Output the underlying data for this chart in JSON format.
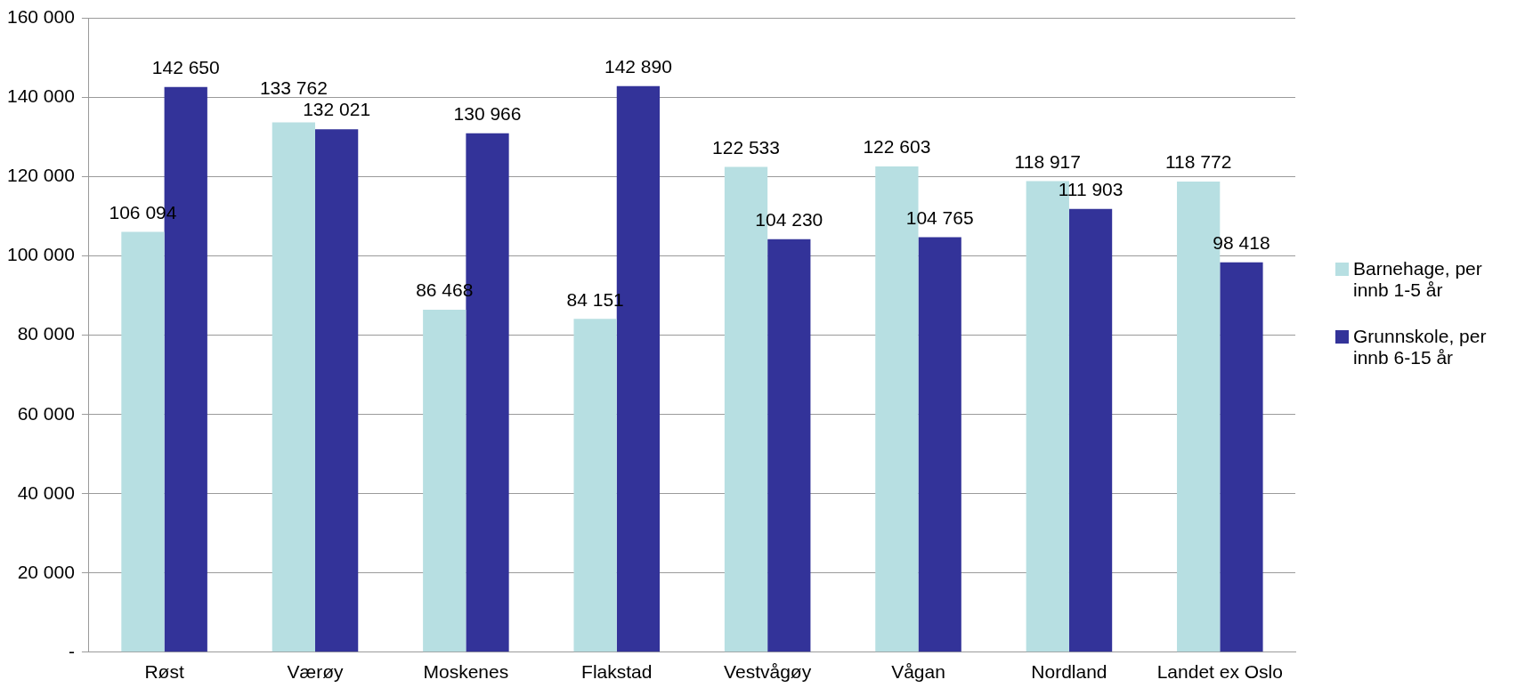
{
  "chart_data": {
    "type": "bar",
    "categories": [
      "Røst",
      "Værøy",
      "Moskenes",
      "Flakstad",
      "Vestvågøy",
      "Vågan",
      "Nordland",
      "Landet ex Oslo"
    ],
    "series": [
      {
        "name": "Barnehage, per innb 1-5 år",
        "color": "#b7dfe2",
        "values": [
          106094,
          133762,
          86468,
          84151,
          122533,
          122603,
          118917,
          118772
        ]
      },
      {
        "name": "Grunnskole, per innb 6-15 år",
        "color": "#333399",
        "values": [
          142650,
          132021,
          130966,
          142890,
          104230,
          104765,
          111903,
          98418
        ]
      }
    ],
    "ylim": [
      0,
      160000
    ],
    "yticks": [
      {
        "value": 0,
        "label": "-"
      },
      {
        "value": 20000,
        "label": "20 000"
      },
      {
        "value": 40000,
        "label": "40 000"
      },
      {
        "value": 60000,
        "label": "60 000"
      },
      {
        "value": 80000,
        "label": "80 000"
      },
      {
        "value": 100000,
        "label": "100 000"
      },
      {
        "value": 120000,
        "label": "120 000"
      },
      {
        "value": 140000,
        "label": "140 000"
      },
      {
        "value": 160000,
        "label": "160 000"
      }
    ],
    "grid": "y",
    "legend": "right",
    "data_labels": true
  }
}
